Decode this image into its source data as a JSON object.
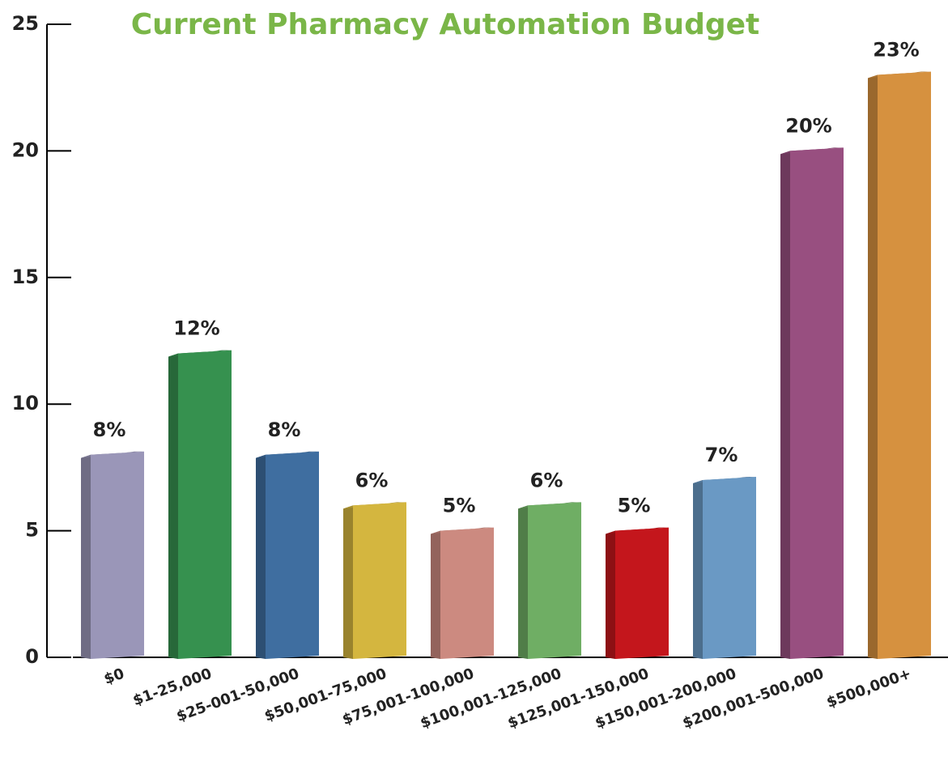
{
  "chart_data": {
    "type": "bar3d",
    "title": "Current Pharmacy Automation Budget",
    "categories": [
      "$0",
      "$1-25,000",
      "$25-001-50,000",
      "$50,001-75,000",
      "$75,001-100,000",
      "$100,001-125,000",
      "$125,001-150,000",
      "$150,001-200,000",
      "$200,001-500,000",
      "$500,000+"
    ],
    "values": [
      8,
      12,
      8,
      6,
      5,
      6,
      5,
      7,
      20,
      23
    ],
    "value_labels": [
      "8%",
      "12%",
      "8%",
      "6%",
      "5%",
      "6%",
      "5%",
      "7%",
      "20%",
      "23%"
    ],
    "colors": [
      "#9a96b8",
      "#36914f",
      "#3f6ea0",
      "#d4b63f",
      "#cc8a80",
      "#6fae64",
      "#c4161c",
      "#6a99c4",
      "#984f80",
      "#d6913f"
    ],
    "ylim": [
      0,
      25
    ],
    "yticks": [
      0,
      5,
      10,
      15,
      20,
      25
    ],
    "grid": false
  }
}
